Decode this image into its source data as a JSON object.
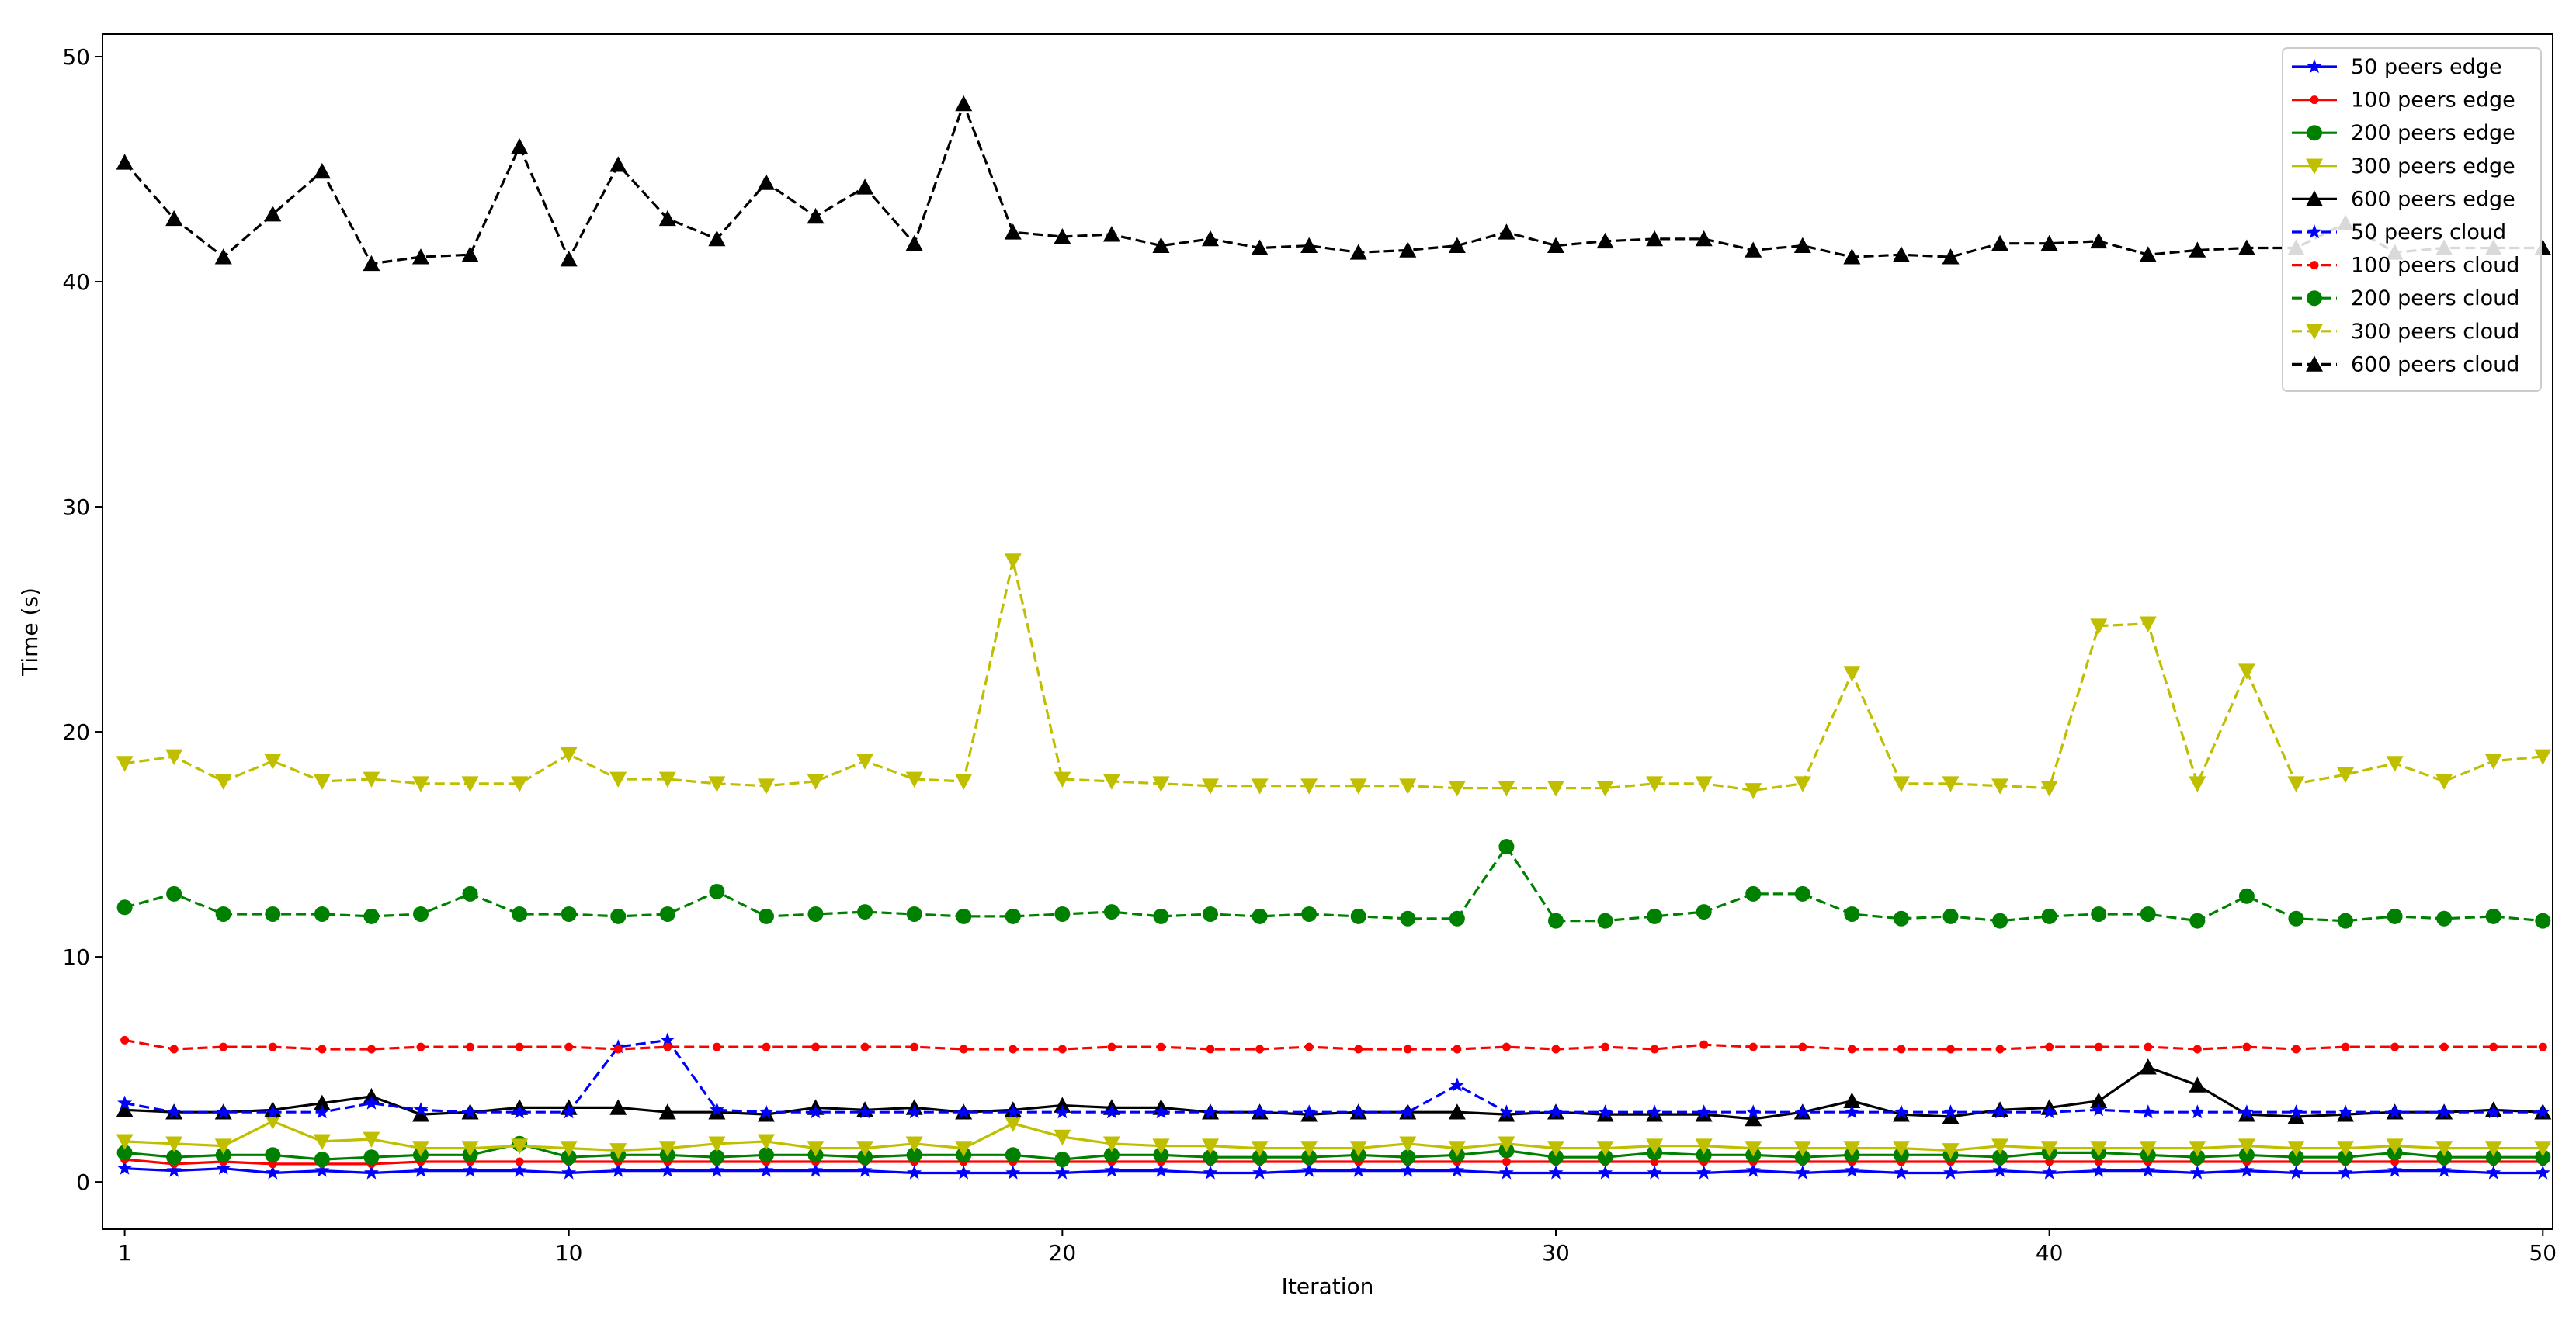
{
  "chart_data": {
    "type": "line",
    "title": "",
    "xlabel": "Iteration",
    "ylabel": "Time (s)",
    "xlim": [
      1,
      50
    ],
    "ylim": [
      0,
      50
    ],
    "xticks": [
      1,
      10,
      20,
      30,
      40,
      50
    ],
    "yticks": [
      0,
      10,
      20,
      30,
      40,
      50
    ],
    "grid": false,
    "legend_position": "top-right",
    "x": [
      1,
      2,
      3,
      4,
      5,
      6,
      7,
      8,
      9,
      10,
      11,
      12,
      13,
      14,
      15,
      16,
      17,
      18,
      19,
      20,
      21,
      22,
      23,
      24,
      25,
      26,
      27,
      28,
      29,
      30,
      31,
      32,
      33,
      34,
      35,
      36,
      37,
      38,
      39,
      40,
      41,
      42,
      43,
      44,
      45,
      46,
      47,
      48,
      49,
      50
    ],
    "series": [
      {
        "name": "50 peers edge",
        "color": "#0000ff",
        "linestyle": "solid",
        "marker": "star",
        "values": [
          0.6,
          0.5,
          0.6,
          0.4,
          0.5,
          0.4,
          0.5,
          0.5,
          0.5,
          0.4,
          0.5,
          0.5,
          0.5,
          0.5,
          0.5,
          0.5,
          0.4,
          0.4,
          0.4,
          0.4,
          0.5,
          0.5,
          0.4,
          0.4,
          0.5,
          0.5,
          0.5,
          0.5,
          0.4,
          0.4,
          0.4,
          0.4,
          0.4,
          0.5,
          0.4,
          0.5,
          0.4,
          0.4,
          0.5,
          0.4,
          0.5,
          0.5,
          0.4,
          0.5,
          0.4,
          0.4,
          0.5,
          0.5,
          0.4,
          0.4
        ]
      },
      {
        "name": "100 peers edge",
        "color": "#ff0000",
        "linestyle": "solid",
        "marker": "dot",
        "values": [
          1.0,
          0.8,
          0.9,
          0.8,
          0.8,
          0.8,
          0.9,
          0.9,
          0.9,
          0.9,
          0.9,
          0.9,
          0.9,
          0.9,
          0.9,
          0.9,
          0.9,
          0.9,
          0.9,
          0.9,
          0.9,
          0.9,
          0.9,
          0.9,
          0.9,
          0.9,
          0.9,
          0.9,
          0.9,
          0.9,
          0.9,
          0.9,
          0.9,
          0.9,
          0.9,
          0.9,
          0.9,
          0.9,
          0.9,
          0.9,
          0.9,
          0.9,
          0.9,
          0.9,
          0.9,
          0.9,
          0.9,
          0.9,
          0.9,
          0.9
        ]
      },
      {
        "name": "200 peers edge",
        "color": "#008000",
        "linestyle": "solid",
        "marker": "circle",
        "values": [
          1.3,
          1.1,
          1.2,
          1.2,
          1.0,
          1.1,
          1.2,
          1.2,
          1.7,
          1.1,
          1.2,
          1.2,
          1.1,
          1.2,
          1.2,
          1.1,
          1.2,
          1.2,
          1.2,
          1.0,
          1.2,
          1.2,
          1.1,
          1.1,
          1.1,
          1.2,
          1.1,
          1.2,
          1.4,
          1.1,
          1.1,
          1.3,
          1.2,
          1.2,
          1.1,
          1.2,
          1.2,
          1.2,
          1.1,
          1.3,
          1.3,
          1.2,
          1.1,
          1.2,
          1.1,
          1.1,
          1.3,
          1.1,
          1.1,
          1.1
        ]
      },
      {
        "name": "300 peers edge",
        "color": "#bfbf00",
        "linestyle": "solid",
        "marker": "triangle-down",
        "values": [
          1.8,
          1.7,
          1.6,
          2.7,
          1.8,
          1.9,
          1.5,
          1.5,
          1.6,
          1.5,
          1.4,
          1.5,
          1.7,
          1.8,
          1.5,
          1.5,
          1.7,
          1.5,
          2.6,
          2.0,
          1.7,
          1.6,
          1.6,
          1.5,
          1.5,
          1.5,
          1.7,
          1.5,
          1.7,
          1.5,
          1.5,
          1.6,
          1.6,
          1.5,
          1.5,
          1.5,
          1.5,
          1.4,
          1.6,
          1.5,
          1.5,
          1.5,
          1.5,
          1.6,
          1.5,
          1.5,
          1.6,
          1.5,
          1.5,
          1.5
        ]
      },
      {
        "name": "600 peers edge",
        "color": "#000000",
        "linestyle": "solid",
        "marker": "triangle-up",
        "values": [
          3.2,
          3.1,
          3.1,
          3.2,
          3.5,
          3.8,
          3.0,
          3.1,
          3.3,
          3.3,
          3.3,
          3.1,
          3.1,
          3.0,
          3.3,
          3.2,
          3.3,
          3.1,
          3.2,
          3.4,
          3.3,
          3.3,
          3.1,
          3.1,
          3.0,
          3.1,
          3.1,
          3.1,
          3.0,
          3.1,
          3.0,
          3.0,
          3.0,
          2.8,
          3.1,
          3.6,
          3.0,
          2.9,
          3.2,
          3.3,
          3.6,
          5.1,
          4.3,
          3.0,
          2.9,
          3.0,
          3.1,
          3.1,
          3.2,
          3.1
        ]
      },
      {
        "name": "50 peers cloud",
        "color": "#0000ff",
        "linestyle": "dashed",
        "marker": "star",
        "values": [
          3.5,
          3.1,
          3.1,
          3.1,
          3.1,
          3.5,
          3.2,
          3.1,
          3.1,
          3.1,
          6.0,
          6.3,
          3.2,
          3.1,
          3.1,
          3.1,
          3.1,
          3.1,
          3.1,
          3.1,
          3.1,
          3.1,
          3.1,
          3.1,
          3.1,
          3.1,
          3.1,
          4.3,
          3.1,
          3.1,
          3.1,
          3.1,
          3.1,
          3.1,
          3.1,
          3.1,
          3.1,
          3.1,
          3.1,
          3.1,
          3.2,
          3.1,
          3.1,
          3.1,
          3.1,
          3.1,
          3.1,
          3.1,
          3.1,
          3.1
        ]
      },
      {
        "name": "100 peers cloud",
        "color": "#ff0000",
        "linestyle": "dashed",
        "marker": "dot",
        "values": [
          6.3,
          5.9,
          6.0,
          6.0,
          5.9,
          5.9,
          6.0,
          6.0,
          6.0,
          6.0,
          5.9,
          6.0,
          6.0,
          6.0,
          6.0,
          6.0,
          6.0,
          5.9,
          5.9,
          5.9,
          6.0,
          6.0,
          5.9,
          5.9,
          6.0,
          5.9,
          5.9,
          5.9,
          6.0,
          5.9,
          6.0,
          5.9,
          6.1,
          6.0,
          6.0,
          5.9,
          5.9,
          5.9,
          5.9,
          6.0,
          6.0,
          6.0,
          5.9,
          6.0,
          5.9,
          6.0,
          6.0,
          6.0,
          6.0,
          6.0
        ]
      },
      {
        "name": "200 peers cloud",
        "color": "#008000",
        "linestyle": "dashed",
        "marker": "circle",
        "values": [
          12.2,
          12.8,
          11.9,
          11.9,
          11.9,
          11.8,
          11.9,
          12.8,
          11.9,
          11.9,
          11.8,
          11.9,
          12.9,
          11.8,
          11.9,
          12.0,
          11.9,
          11.8,
          11.8,
          11.9,
          12.0,
          11.8,
          11.9,
          11.8,
          11.9,
          11.8,
          11.7,
          11.7,
          14.9,
          11.6,
          11.6,
          11.8,
          12.0,
          12.8,
          12.8,
          11.9,
          11.7,
          11.8,
          11.6,
          11.8,
          11.9,
          11.9,
          11.6,
          12.7,
          11.7,
          11.6,
          11.8,
          11.7,
          11.8,
          11.6
        ]
      },
      {
        "name": "300 peers cloud",
        "color": "#bfbf00",
        "linestyle": "dashed",
        "marker": "triangle-down",
        "values": [
          18.6,
          18.9,
          17.8,
          18.7,
          17.8,
          17.9,
          17.7,
          17.7,
          17.7,
          19.0,
          17.9,
          17.9,
          17.7,
          17.6,
          17.8,
          18.7,
          17.9,
          17.8,
          27.6,
          17.9,
          17.8,
          17.7,
          17.6,
          17.6,
          17.6,
          17.6,
          17.6,
          17.5,
          17.5,
          17.5,
          17.5,
          17.7,
          17.7,
          17.4,
          17.7,
          22.6,
          17.7,
          17.7,
          17.6,
          17.5,
          24.7,
          24.8,
          17.7,
          22.7,
          17.7,
          18.1,
          18.6,
          17.8,
          18.7,
          18.9
        ]
      },
      {
        "name": "600 peers cloud",
        "color": "#000000",
        "linestyle": "dashed",
        "marker": "triangle-up",
        "values": [
          45.3,
          42.8,
          41.1,
          43.0,
          44.9,
          40.8,
          41.1,
          41.2,
          46.0,
          41.0,
          45.2,
          42.8,
          41.9,
          44.4,
          42.9,
          44.2,
          41.7,
          47.9,
          42.2,
          42.0,
          42.1,
          41.6,
          41.9,
          41.5,
          41.6,
          41.3,
          41.4,
          41.6,
          42.2,
          41.6,
          41.8,
          41.9,
          41.9,
          41.4,
          41.6,
          41.1,
          41.2,
          41.1,
          41.7,
          41.7,
          41.8,
          41.2,
          41.4,
          41.5,
          41.5,
          42.6,
          41.3,
          41.5,
          41.5,
          41.5
        ]
      }
    ]
  }
}
